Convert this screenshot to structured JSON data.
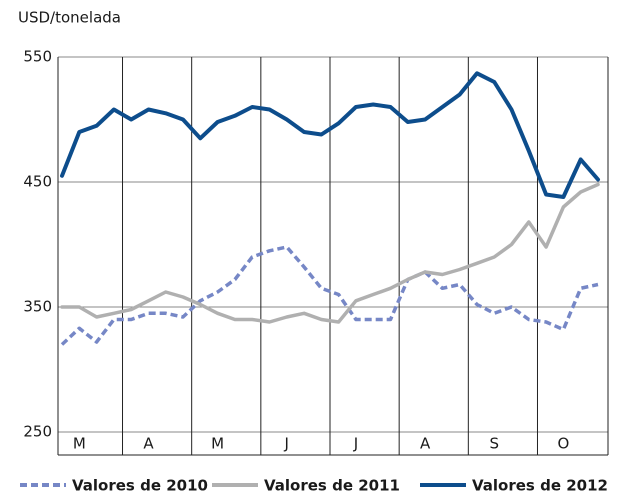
{
  "chart_data": {
    "type": "line",
    "y_label": "USD/tonelada",
    "categories": [
      null,
      "M",
      null,
      null,
      null,
      "A",
      null,
      null,
      null,
      "M",
      null,
      null,
      null,
      "J",
      null,
      null,
      null,
      "J",
      null,
      null,
      null,
      "A",
      null,
      null,
      null,
      "S",
      null,
      null,
      null,
      "O",
      null,
      null
    ],
    "ylim": [
      250,
      550
    ],
    "yticks": [
      250,
      350,
      450,
      550
    ],
    "grid": true,
    "legend": "bottom",
    "series": [
      {
        "name": "Valores de 2010",
        "color": "#7687c6",
        "dash": true,
        "values": [
          320,
          333,
          322,
          340,
          340,
          345,
          345,
          342,
          355,
          362,
          372,
          390,
          395,
          398,
          382,
          365,
          360,
          340,
          340,
          340,
          372,
          378,
          365,
          368,
          352,
          345,
          350,
          340,
          338,
          332,
          365,
          368
        ]
      },
      {
        "name": "Valores de 2011",
        "color": "#b0b0b0",
        "dash": false,
        "values": [
          350,
          350,
          342,
          345,
          348,
          355,
          362,
          358,
          352,
          345,
          340,
          340,
          338,
          342,
          345,
          340,
          338,
          355,
          360,
          365,
          372,
          378,
          376,
          380,
          385,
          390,
          400,
          418,
          398,
          430,
          442,
          448
        ]
      },
      {
        "name": "Valores de 2012",
        "color": "#0d4d8c",
        "dash": false,
        "values": [
          455,
          490,
          495,
          508,
          500,
          508,
          505,
          500,
          485,
          498,
          503,
          510,
          508,
          500,
          490,
          488,
          497,
          510,
          512,
          510,
          498,
          500,
          510,
          520,
          537,
          530,
          508,
          475,
          440,
          438,
          468,
          452
        ]
      }
    ]
  }
}
